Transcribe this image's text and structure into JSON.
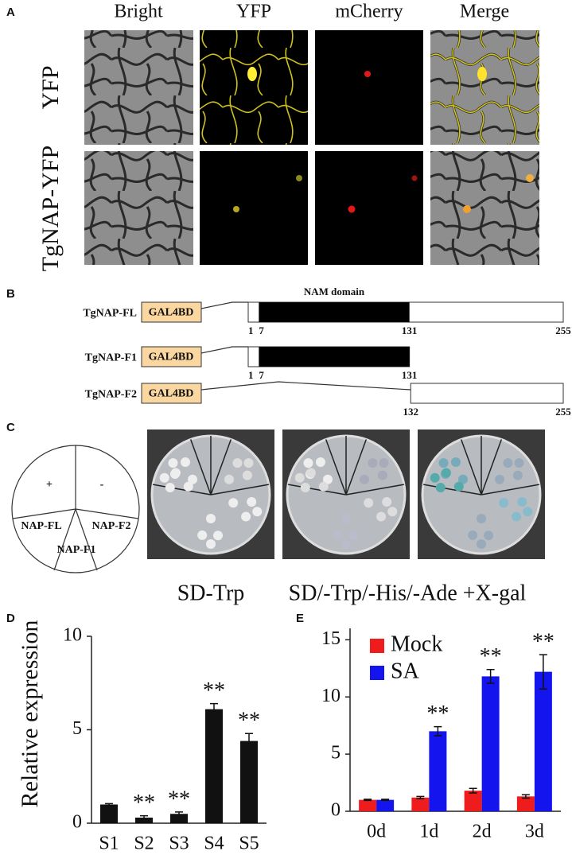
{
  "panel_labels": [
    "A",
    "B",
    "C",
    "D",
    "E"
  ],
  "microscopy": {
    "columns": [
      "Bright",
      "YFP",
      "mCherry",
      "Merge"
    ],
    "rows": [
      "YFP",
      "TgNAP-YFP"
    ]
  },
  "constructs": {
    "domain_label": "NAM domain",
    "bd_label": "GAL4BD",
    "items": [
      {
        "name": "TgNAP-FL",
        "start": 1,
        "domain_start": 7,
        "domain_end": 131,
        "end": 255
      },
      {
        "name": "TgNAP-F1",
        "start": 1,
        "domain_start": 7,
        "domain_end": 131
      },
      {
        "name": "TgNAP-F2",
        "start": 132,
        "end": 255
      }
    ]
  },
  "yeast": {
    "sectors": [
      "+",
      "-",
      "NAP-FL",
      "NAP-F2",
      "NAP-F1"
    ],
    "captions": [
      "SD-Trp",
      "SD/-Trp/-His/-Ade +X-gal"
    ]
  },
  "chart_data": [
    {
      "type": "bar",
      "ylabel": "Relative expression",
      "categories": [
        "S1",
        "S2",
        "S3",
        "S4",
        "S5"
      ],
      "values": [
        1.0,
        0.3,
        0.5,
        6.1,
        4.4
      ],
      "errors": [
        0.05,
        0.1,
        0.1,
        0.3,
        0.4
      ],
      "annotations": [
        null,
        "**",
        "**",
        "**",
        "**"
      ],
      "color": "#111111",
      "ylim": [
        0,
        10
      ],
      "yticks": [
        0,
        5,
        10
      ]
    },
    {
      "type": "bar",
      "categories": [
        "0d",
        "1d",
        "2d",
        "3d"
      ],
      "series": [
        {
          "name": "Mock",
          "color": "#ee1c1c",
          "values": [
            1.0,
            1.2,
            1.8,
            1.3
          ],
          "errors": [
            0.05,
            0.1,
            0.2,
            0.15
          ]
        },
        {
          "name": "SA",
          "color": "#1414ee",
          "values": [
            1.0,
            7.0,
            11.8,
            12.2
          ],
          "errors": [
            0.05,
            0.4,
            0.6,
            1.5
          ],
          "annotations": [
            null,
            "**",
            "**",
            "**"
          ]
        }
      ],
      "ylim": [
        0,
        16
      ],
      "yticks": [
        0,
        5,
        10,
        15
      ],
      "legend": "upper left"
    }
  ]
}
